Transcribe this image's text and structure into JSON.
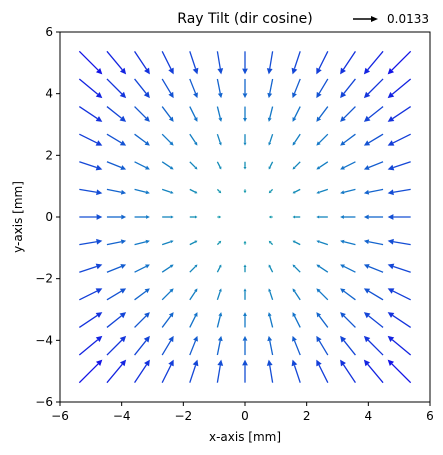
{
  "chart_data": {
    "type": "quiver",
    "title": "Ray Tilt (dir cosine)",
    "xlabel": "x-axis [mm]",
    "ylabel": "y-axis [mm]",
    "xlim": [
      -6,
      6
    ],
    "ylim": [
      -6,
      6
    ],
    "xticks": [
      -6,
      -4,
      -2,
      0,
      2,
      4,
      6
    ],
    "yticks": [
      -6,
      -4,
      -2,
      0,
      2,
      4,
      6
    ],
    "xtick_labels": [
      "−6",
      "−4",
      "−2",
      "0",
      "2",
      "4",
      "6"
    ],
    "ytick_labels": [
      "−6",
      "−4",
      "−2",
      "0",
      "2",
      "4",
      "6"
    ],
    "grid": false,
    "quiver_key": {
      "label": "0.0133",
      "placement": "top-right"
    },
    "field": {
      "x": [
        -5,
        -4.1667,
        -3.3333,
        -2.5,
        -1.6667,
        -0.8333,
        0,
        0.8333,
        1.6667,
        2.5,
        3.3333,
        4.1667,
        5
      ],
      "y": [
        -5,
        -4.1667,
        -3.3333,
        -2.5,
        -1.6667,
        -0.8333,
        0,
        0.8333,
        1.6667,
        2.5,
        3.3333,
        4.1667,
        5
      ],
      "u_formula": "u = -0.0027 * x",
      "v_formula": "v = -0.0027 * y",
      "description": "radially converging direction-cosine vectors, magnitude proportional to radius"
    },
    "colors": {
      "far": "#1414e6",
      "mid": "#1478c8",
      "near": "#14a3a3"
    }
  }
}
